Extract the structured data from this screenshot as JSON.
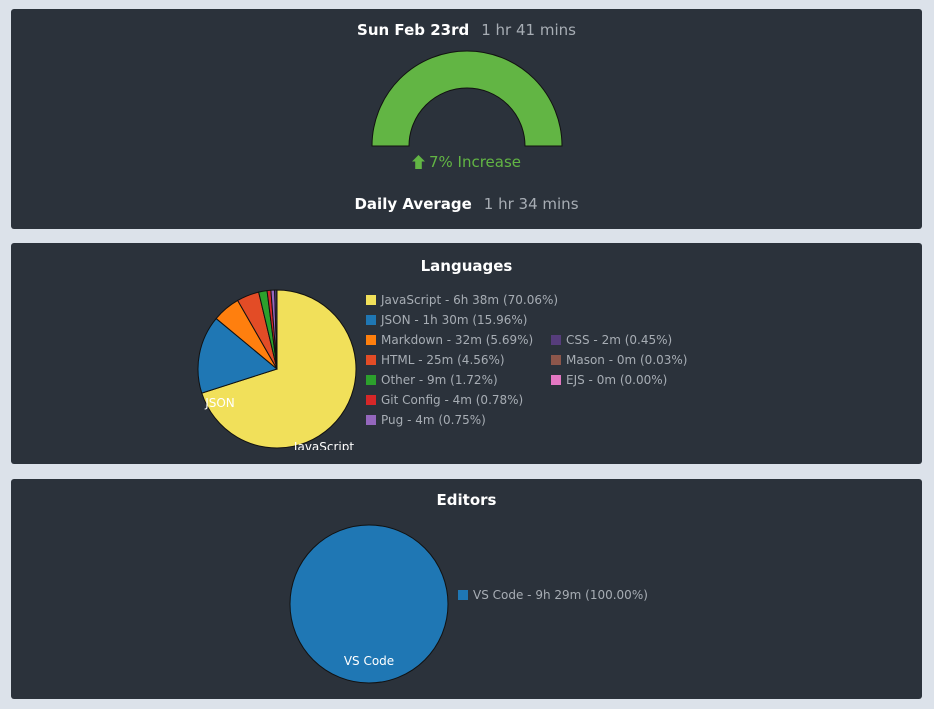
{
  "summary": {
    "date": "Sun Feb 23rd",
    "date_duration": "1 hr 41 mins",
    "change_text": "7% Increase",
    "change_direction": "up",
    "daily_average_label": "Daily Average",
    "daily_average_value": "1 hr 34 mins",
    "gauge_color": "#62b544"
  },
  "languages": {
    "title": "Languages",
    "chart_data": {
      "type": "pie",
      "slices": [
        {
          "name": "JavaScript",
          "label": "JavaScript - 6h 38m (70.06%)",
          "percent": 70.06,
          "color": "#f1e05a",
          "slice_label": "JavaScript"
        },
        {
          "name": "JSON",
          "label": "JSON - 1h 30m (15.96%)",
          "percent": 15.96,
          "color": "#1f77b4",
          "slice_label": "JSON"
        },
        {
          "name": "Markdown",
          "label": "Markdown - 32m (5.69%)",
          "percent": 5.69,
          "color": "#ff7f0e",
          "slice_label": ""
        },
        {
          "name": "HTML",
          "label": "HTML - 25m (4.56%)",
          "percent": 4.56,
          "color": "#e34c26",
          "slice_label": ""
        },
        {
          "name": "Other",
          "label": "Other - 9m (1.72%)",
          "percent": 1.72,
          "color": "#2ca02c",
          "slice_label": ""
        },
        {
          "name": "Git Config",
          "label": "Git Config - 4m (0.78%)",
          "percent": 0.78,
          "color": "#d62728",
          "slice_label": ""
        },
        {
          "name": "Pug",
          "label": "Pug - 4m (0.75%)",
          "percent": 0.75,
          "color": "#9467bd",
          "slice_label": ""
        },
        {
          "name": "CSS",
          "label": "CSS - 2m (0.45%)",
          "percent": 0.45,
          "color": "#563d7c",
          "slice_label": ""
        },
        {
          "name": "Mason",
          "label": "Mason - 0m (0.03%)",
          "percent": 0.03,
          "color": "#8c564b",
          "slice_label": ""
        },
        {
          "name": "EJS",
          "label": "EJS - 0m (0.00%)",
          "percent": 0.0,
          "color": "#e377c2",
          "slice_label": ""
        }
      ]
    }
  },
  "editors": {
    "title": "Editors",
    "chart_data": {
      "type": "pie",
      "slices": [
        {
          "name": "VS Code",
          "label": "VS Code - 9h 29m (100.00%)",
          "percent": 100.0,
          "color": "#1f77b4",
          "slice_label": "VS Code"
        }
      ]
    }
  }
}
